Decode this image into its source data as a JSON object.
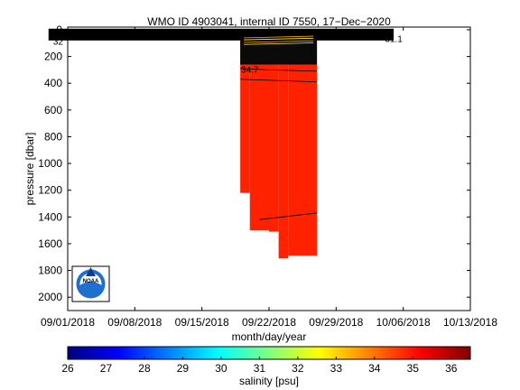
{
  "chart_data": {
    "type": "heatmap",
    "title": "WMO ID 4903041, internal ID 7550, 17−Dec−2020",
    "xlabel": "month/day/year",
    "ylabel": "pressure [dbar]",
    "x_ticks": [
      "09/01/2018",
      "09/08/2018",
      "09/15/2018",
      "09/22/2018",
      "09/29/2018",
      "10/06/2018",
      "10/13/2018"
    ],
    "x_range": [
      "09/01/2018",
      "10/13/2018"
    ],
    "y_ticks": [
      0,
      200,
      400,
      600,
      800,
      1000,
      1200,
      1400,
      1600,
      1800,
      2000
    ],
    "ylim": [
      2100,
      -20
    ],
    "y_reversed": true,
    "grid": false,
    "profiles": [
      {
        "start": "09/19/2018",
        "end": "09/20/2018",
        "max_pressure": 1220
      },
      {
        "start": "09/20/2018",
        "end": "09/22/2018",
        "max_pressure": 1500
      },
      {
        "start": "09/22/2018",
        "end": "09/23/2018",
        "max_pressure": 1510
      },
      {
        "start": "09/23/2018",
        "end": "09/24/2018",
        "max_pressure": 1710
      },
      {
        "start": "09/24/2018",
        "end": "09/27/2018",
        "max_pressure": 1690
      }
    ],
    "surface_band": {
      "start": "08/30/2018",
      "end": "10/05/2018",
      "max_pressure": 80
    },
    "deep_salinity": 35.0,
    "contour_labels": [
      {
        "text": "34.7",
        "x": "09/20/2018",
        "y": 320
      },
      {
        "text": "32",
        "x": "08/31/2018",
        "y": 110
      },
      {
        "text": "31.1",
        "x": "10/05/2018",
        "y": 90
      }
    ],
    "colorbar": {
      "label": "salinity [psu]",
      "min": 26,
      "max": 36.5,
      "ticks": [
        26,
        27,
        28,
        29,
        30,
        31,
        32,
        33,
        34,
        35,
        36
      ],
      "colormap": "jet"
    },
    "logo": "NOAA"
  },
  "colors": {
    "deep_water": "#ff2200",
    "contour": "#000000",
    "background": "#ffffff"
  }
}
